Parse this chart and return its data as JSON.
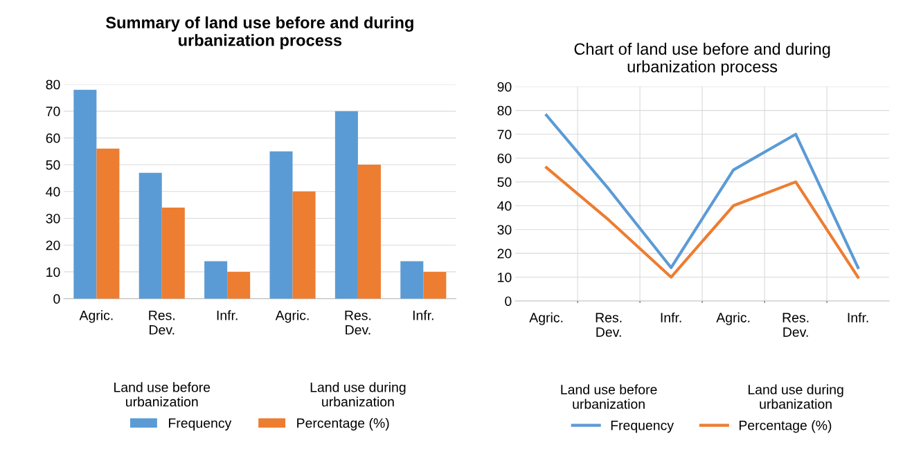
{
  "chart_data": [
    {
      "type": "bar",
      "title": "Summary of land use before and during\nurbanization process",
      "categories": [
        "Agric.",
        "Res.\nDev.",
        "Infr.",
        "Agric.",
        "Res.\nDev.",
        "Infr."
      ],
      "series": [
        {
          "name": "Frequency",
          "color": "#5b9bd5",
          "values": [
            78,
            47,
            14,
            55,
            70,
            14
          ]
        },
        {
          "name": "Percentage (%)",
          "color": "#ed7d31",
          "values": [
            56,
            34,
            10,
            40,
            50,
            10
          ]
        }
      ],
      "annotations": [
        "Land use before\nurbanization",
        "Land use during\nurbanization"
      ],
      "ylim": [
        0,
        80
      ],
      "yticks": [
        0,
        10,
        20,
        30,
        40,
        50,
        60,
        70,
        80
      ],
      "grid": "y",
      "legend": "bottom"
    },
    {
      "type": "line",
      "title": "Chart of land use before and during\nurbanization process",
      "categories": [
        "Agric.",
        "Res.\nDev.",
        "Infr.",
        "Agric.",
        "Res.\nDev.",
        "Infr."
      ],
      "series": [
        {
          "name": "Frequency",
          "color": "#5b9bd5",
          "values": [
            78,
            47,
            14,
            55,
            70,
            14
          ]
        },
        {
          "name": "Percentage (%)",
          "color": "#ed7d31",
          "values": [
            56,
            34,
            10,
            40,
            50,
            10
          ]
        }
      ],
      "annotations": [
        "Land use before\nurbanization",
        "Land use during\nurbanization"
      ],
      "ylim": [
        0,
        90
      ],
      "yticks": [
        0,
        10,
        20,
        30,
        40,
        50,
        60,
        70,
        80,
        90
      ],
      "grid": true,
      "legend": "bottom"
    }
  ]
}
